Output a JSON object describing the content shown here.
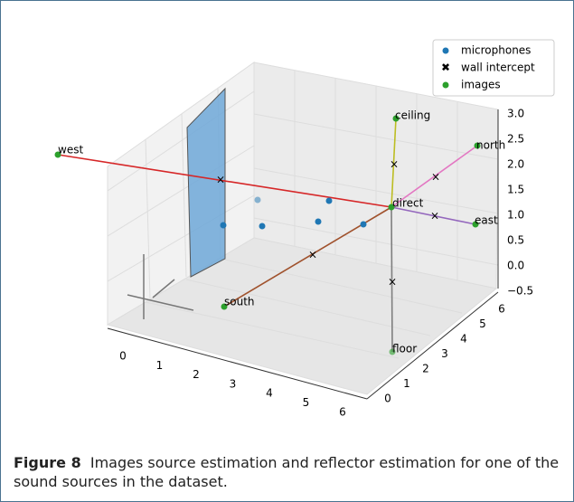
{
  "figure": {
    "legend": [
      "microphones",
      "wall intercept",
      "images"
    ],
    "point_labels": {
      "west": "west",
      "ceiling": "ceiling",
      "north": "north",
      "direct": "direct",
      "east": "east",
      "south": "south",
      "floor": "floor"
    },
    "x_ticks": [
      "0",
      "1",
      "2",
      "3",
      "4",
      "5",
      "6"
    ],
    "y_ticks": [
      "0",
      "1",
      "2",
      "3",
      "4",
      "5",
      "6"
    ],
    "z_ticks": [
      "3.0",
      "2.5",
      "2.0",
      "1.5",
      "1.0",
      "0.5",
      "0.0",
      "−0.5"
    ],
    "caption": {
      "label": "Figure 8",
      "text": "Images source estimation and reflector estimation for one of the sound sources in the dataset."
    }
  }
}
